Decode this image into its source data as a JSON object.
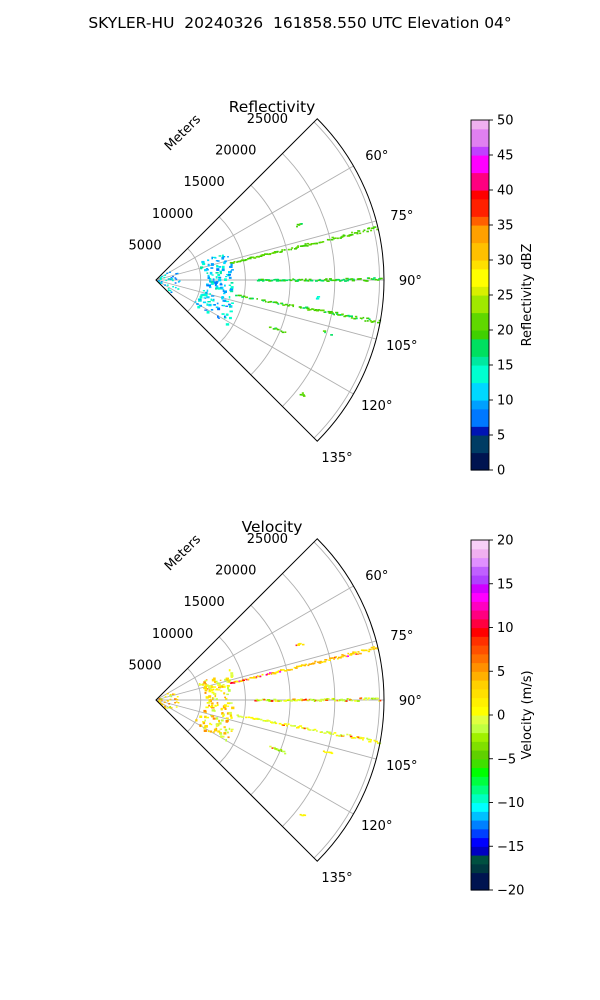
{
  "figure_title": "SKYLER-HU  20240326  161858.550 UTC Elevation 04°",
  "chart_data": [
    {
      "type": "scatter",
      "projection": "polar-sector",
      "title": "Reflectivity",
      "radial_label": "Meters",
      "radial_ticks": [
        "5000",
        "10000",
        "15000",
        "20000",
        "25000"
      ],
      "radial_tick_values": [
        5000,
        10000,
        15000,
        20000,
        25000
      ],
      "angular_ticks": [
        "60°",
        "75°",
        "90°",
        "105°",
        "120°",
        "135°"
      ],
      "angular_tick_values": [
        60,
        75,
        90,
        105,
        120,
        135
      ],
      "theta_range_deg": [
        45,
        135
      ],
      "r_range": [
        0,
        25500
      ],
      "grid": true,
      "colorbar": {
        "label": "Reflectivity dBZ",
        "min": 0,
        "max": 50,
        "ticks": [
          "0",
          "5",
          "10",
          "15",
          "20",
          "25",
          "30",
          "35",
          "40",
          "45",
          "50"
        ],
        "colormap": "pyart_NWSRef"
      },
      "features": [
        {
          "theta_deg": 76.5,
          "r_start": 8500,
          "r_end": 25300,
          "value": 20
        },
        {
          "theta_deg": 89.7,
          "r_start": 11000,
          "r_end": 25000,
          "value": 18
        },
        {
          "theta_deg": 100.5,
          "r_start": 9000,
          "r_end": 25300,
          "value": 19
        },
        {
          "theta_deg": 68.5,
          "r_start": 16800,
          "r_end": 17500,
          "value": 19
        },
        {
          "theta_deg": 96,
          "r_start": 18000,
          "r_end": 18100,
          "value": 13
        },
        {
          "theta_deg": 107,
          "r_start": 19500,
          "r_end": 20400,
          "value": 19
        },
        {
          "theta_deg": 112,
          "r_start": 13500,
          "r_end": 15500,
          "value": 19
        },
        {
          "theta_deg": 128,
          "r_start": 20500,
          "r_end": 20900,
          "value": 19
        }
      ],
      "near_clutter": {
        "r_center": 7000,
        "theta_span_deg": [
          67,
          122
        ],
        "value": 11
      }
    },
    {
      "type": "scatter",
      "projection": "polar-sector",
      "title": "Velocity",
      "radial_label": "Meters",
      "radial_ticks": [
        "5000",
        "10000",
        "15000",
        "20000",
        "25000"
      ],
      "radial_tick_values": [
        5000,
        10000,
        15000,
        20000,
        25000
      ],
      "angular_ticks": [
        "60°",
        "75°",
        "90°",
        "105°",
        "120°",
        "135°"
      ],
      "angular_tick_values": [
        60,
        75,
        90,
        105,
        120,
        135
      ],
      "theta_range_deg": [
        45,
        135
      ],
      "r_range": [
        0,
        25500
      ],
      "grid": true,
      "colorbar": {
        "label": "Velocity (m/s)",
        "min": -20,
        "max": 20,
        "ticks": [
          "−20",
          "−15",
          "−10",
          "−5",
          "0",
          "5",
          "10",
          "15",
          "20"
        ],
        "colormap": "pyart_NWSVel"
      },
      "features": [
        {
          "theta_deg": 76.5,
          "r_start": 8500,
          "r_end": 25300,
          "value": 3
        },
        {
          "theta_deg": 89.7,
          "r_start": 11000,
          "r_end": 25000,
          "value": -1
        },
        {
          "theta_deg": 100.5,
          "r_start": 9000,
          "r_end": 25300,
          "value": 0
        },
        {
          "theta_deg": 68.5,
          "r_start": 16800,
          "r_end": 17500,
          "value": 1
        },
        {
          "theta_deg": 107,
          "r_start": 19500,
          "r_end": 20400,
          "value": 2
        },
        {
          "theta_deg": 112,
          "r_start": 13500,
          "r_end": 15500,
          "value": -2
        },
        {
          "theta_deg": 128,
          "r_start": 20500,
          "r_end": 20900,
          "value": 1
        }
      ],
      "near_clutter": {
        "r_center": 7000,
        "theta_span_deg": [
          67,
          122
        ],
        "value": 2
      }
    }
  ]
}
